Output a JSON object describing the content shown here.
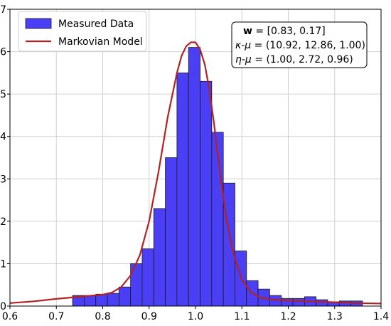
{
  "chart_data": {
    "type": "bar",
    "title": "",
    "xlabel": "",
    "ylabel": "",
    "xlim": [
      0.6,
      1.4
    ],
    "ylim": [
      0,
      7
    ],
    "x_ticks": [
      "0.6",
      "0.7",
      "0.8",
      "0.9",
      "1.0",
      "1.1",
      "1.2",
      "1.3",
      "1.4"
    ],
    "y_ticks": [
      "0",
      "1",
      "2",
      "3",
      "4",
      "5",
      "6",
      "7"
    ],
    "grid": true,
    "legend_position": "top-left",
    "colors": {
      "histogram_fill": "#4a3ff5",
      "histogram_edge": "#1a1a1a",
      "model_line": "#b22222"
    },
    "histogram": {
      "name": "Measured Data",
      "bins": [
        {
          "x0": 0.735,
          "x1": 0.76,
          "value": 0.25
        },
        {
          "x0": 0.76,
          "x1": 0.785,
          "value": 0.25
        },
        {
          "x0": 0.785,
          "x1": 0.81,
          "value": 0.28
        },
        {
          "x0": 0.81,
          "x1": 0.835,
          "value": 0.3
        },
        {
          "x0": 0.835,
          "x1": 0.86,
          "value": 0.45
        },
        {
          "x0": 0.86,
          "x1": 0.885,
          "value": 1.0
        },
        {
          "x0": 0.885,
          "x1": 0.91,
          "value": 1.35
        },
        {
          "x0": 0.91,
          "x1": 0.935,
          "value": 2.3
        },
        {
          "x0": 0.935,
          "x1": 0.96,
          "value": 3.5
        },
        {
          "x0": 0.96,
          "x1": 0.985,
          "value": 5.5
        },
        {
          "x0": 0.985,
          "x1": 1.01,
          "value": 6.1
        },
        {
          "x0": 1.01,
          "x1": 1.035,
          "value": 5.3
        },
        {
          "x0": 1.035,
          "x1": 1.06,
          "value": 4.1
        },
        {
          "x0": 1.06,
          "x1": 1.085,
          "value": 2.9
        },
        {
          "x0": 1.085,
          "x1": 1.11,
          "value": 1.3
        },
        {
          "x0": 1.11,
          "x1": 1.135,
          "value": 0.6
        },
        {
          "x0": 1.135,
          "x1": 1.16,
          "value": 0.4
        },
        {
          "x0": 1.16,
          "x1": 1.185,
          "value": 0.25
        },
        {
          "x0": 1.185,
          "x1": 1.21,
          "value": 0.18
        },
        {
          "x0": 1.21,
          "x1": 1.235,
          "value": 0.18
        },
        {
          "x0": 1.235,
          "x1": 1.26,
          "value": 0.22
        },
        {
          "x0": 1.26,
          "x1": 1.285,
          "value": 0.15
        },
        {
          "x0": 1.285,
          "x1": 1.31,
          "value": 0.1
        },
        {
          "x0": 1.31,
          "x1": 1.335,
          "value": 0.12
        },
        {
          "x0": 1.335,
          "x1": 1.36,
          "value": 0.12
        }
      ]
    },
    "model_curve": {
      "name": "Markovian Model",
      "x": [
        0.6,
        0.65,
        0.7,
        0.75,
        0.78,
        0.8,
        0.82,
        0.84,
        0.86,
        0.88,
        0.9,
        0.92,
        0.94,
        0.96,
        0.97,
        0.98,
        0.99,
        1.0,
        1.01,
        1.02,
        1.03,
        1.04,
        1.05,
        1.06,
        1.07,
        1.08,
        1.1,
        1.12,
        1.14,
        1.16,
        1.18,
        1.2,
        1.25,
        1.3,
        1.35,
        1.4
      ],
      "y": [
        0.07,
        0.11,
        0.17,
        0.22,
        0.25,
        0.27,
        0.32,
        0.45,
        0.72,
        1.2,
        2.0,
        3.15,
        4.45,
        5.5,
        5.9,
        6.13,
        6.22,
        6.22,
        6.05,
        5.7,
        5.1,
        4.3,
        3.4,
        2.55,
        1.85,
        1.3,
        0.62,
        0.32,
        0.2,
        0.16,
        0.14,
        0.13,
        0.11,
        0.09,
        0.07,
        0.06
      ]
    },
    "annotation": {
      "w_label": "w",
      "w_value": " = [0.83, 0.17]",
      "kappa_label": "κ-μ",
      "kappa_value": " = (10.92, 12.86, 1.00)",
      "eta_label": "η-μ",
      "eta_value": " = (1.00, 2.72, 0.96)"
    }
  }
}
